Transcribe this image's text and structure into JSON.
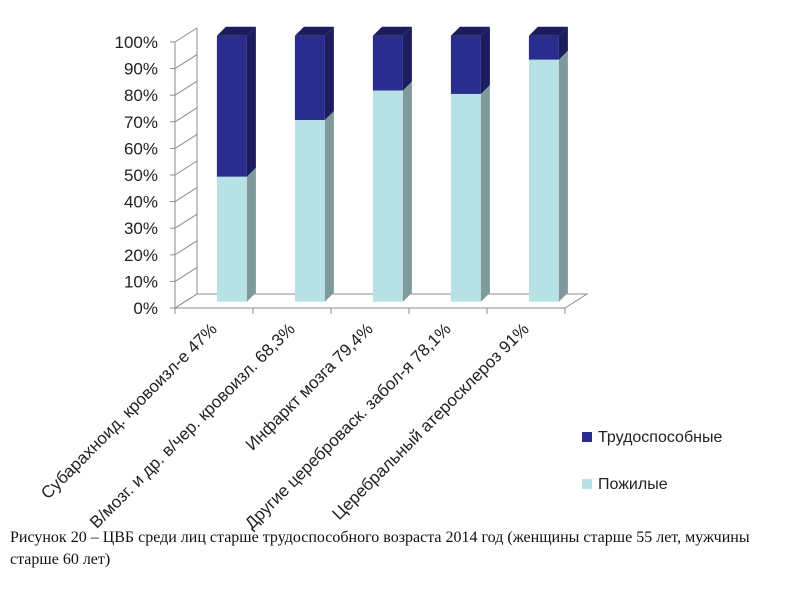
{
  "chart_data": {
    "type": "bar",
    "stacked": "percent",
    "three_d": true,
    "categories": [
      "Субарахноид. кровоизл-е 47%",
      "В/мозг. и др. в/чер. кровоизл. 68,3%",
      "Инфаркт мозга 79,4%",
      "Другие цереброваск. забол-я 78,1%",
      "Церебральный атеросклероз 91%"
    ],
    "series": [
      {
        "name": "Пожилые",
        "values": [
          47,
          68.3,
          79.4,
          78.1,
          91
        ]
      },
      {
        "name": "Трудоспособные",
        "values": [
          53,
          31.7,
          20.6,
          21.9,
          9
        ]
      }
    ],
    "y_ticks": [
      "0%",
      "10%",
      "20%",
      "30%",
      "40%",
      "50%",
      "60%",
      "70%",
      "80%",
      "90%",
      "100%"
    ],
    "ylim": [
      0,
      100
    ],
    "grid": false,
    "legend": "right",
    "colors": {
      "Пожилые": "#b7e1e4",
      "Пожилые_side": "#7f9a9c",
      "Трудоспособные": "#2b2d8e",
      "Трудоспособные_side": "#1c1d5e",
      "axis": "#8c8c8c"
    }
  },
  "caption": "Рисунок 20 – ЦВБ среди лиц старше трудоспособного возраста 2014 год (женщины старше 55 лет, мужчины старше 60 лет)"
}
